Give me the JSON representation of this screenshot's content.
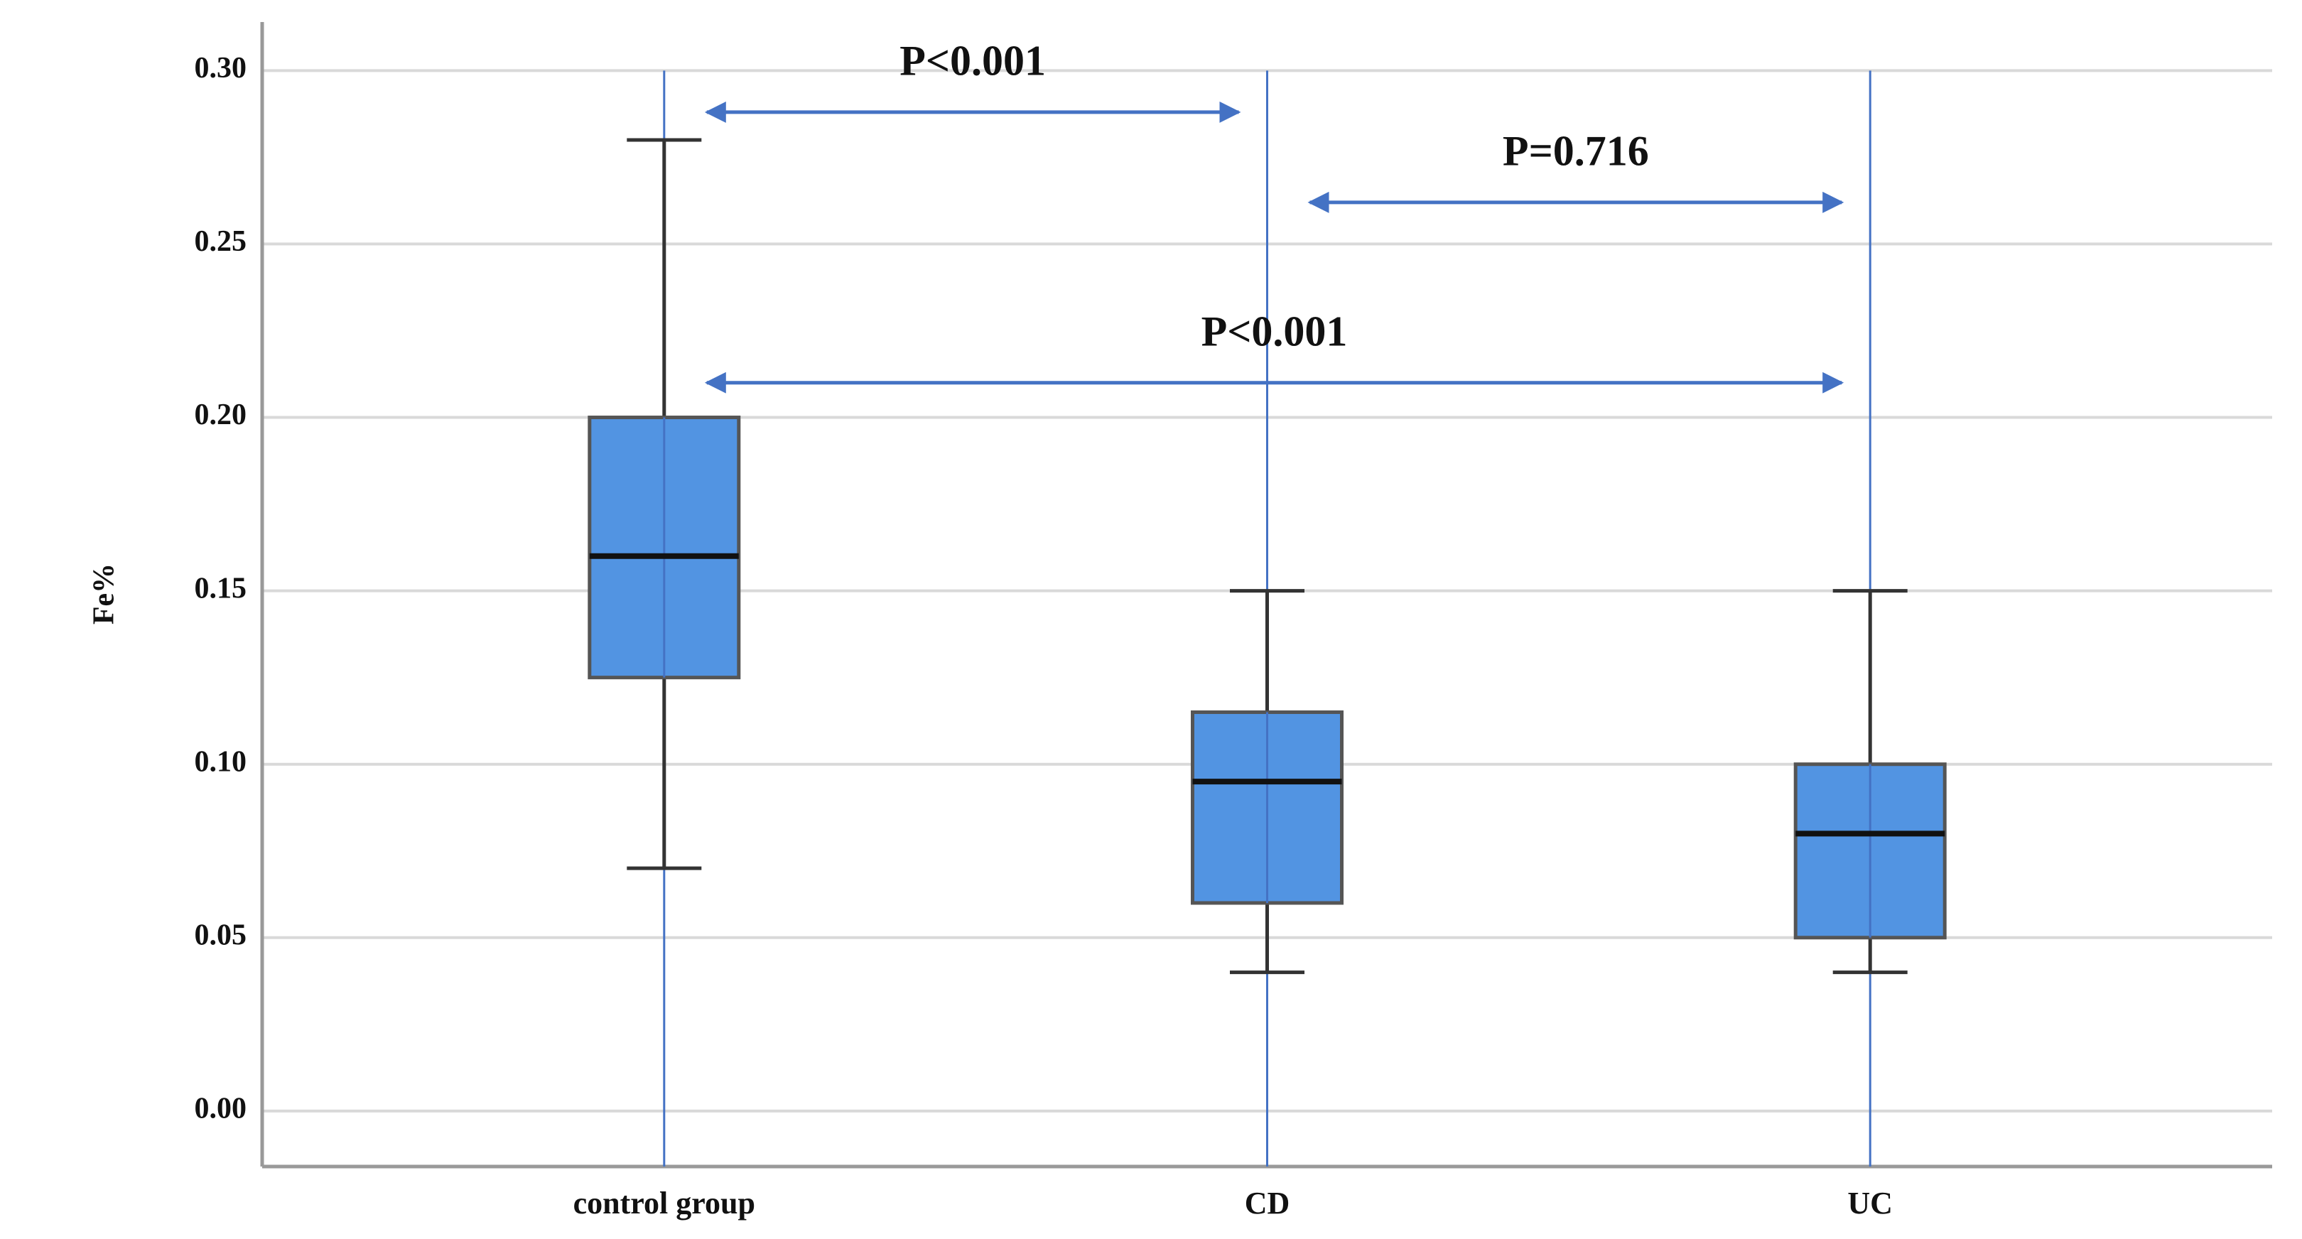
{
  "chart_data": {
    "type": "box",
    "y_label": "Fe%",
    "categories": [
      "control group",
      "CD",
      "UC"
    ],
    "whisker_low": [
      0.07,
      0.04,
      0.04
    ],
    "q1": [
      0.125,
      0.06,
      0.05
    ],
    "median": [
      0.16,
      0.095,
      0.08
    ],
    "q3": [
      0.2,
      0.115,
      0.1
    ],
    "whisker_high": [
      0.28,
      0.15,
      0.15
    ],
    "color": "#5294e2",
    "ylim": [
      -0.016,
      0.314
    ],
    "yticks": [
      {
        "value": 0,
        "label": "0.00"
      },
      {
        "value": 0.05,
        "label": "0.05"
      },
      {
        "value": 0.1,
        "label": "0.10"
      },
      {
        "value": 0.15,
        "label": "0.15"
      },
      {
        "value": 0.2,
        "label": "0.20"
      },
      {
        "value": 0.25,
        "label": "0.25"
      },
      {
        "value": 0.3,
        "label": "0.30"
      }
    ],
    "grid": true,
    "annotations": [
      {
        "text": "P<0.001",
        "between": [
          0,
          1
        ],
        "y": 0.288
      },
      {
        "text": "P=0.716",
        "between": [
          1,
          2
        ],
        "y": 0.262
      },
      {
        "text": "P<0.001",
        "between": [
          0,
          2
        ],
        "y": 0.21
      }
    ]
  }
}
